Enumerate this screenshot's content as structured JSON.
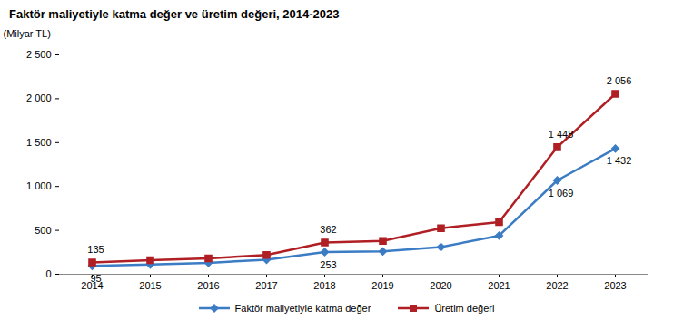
{
  "chart_data": {
    "type": "line",
    "title": "Faktör maliyetiyle katma değer ve üretim değeri, 2014-2023",
    "y_label": "(Milyar TL)",
    "x": [
      2014,
      2015,
      2016,
      2017,
      2018,
      2019,
      2020,
      2021,
      2022,
      2023
    ],
    "series": [
      {
        "name": "Faktör maliyetiyle katma değer",
        "color": "#3b7cc4",
        "marker": "diamond",
        "values": [
          95,
          110,
          130,
          165,
          253,
          260,
          310,
          440,
          1069,
          1432
        ],
        "value_labels": [
          "95",
          null,
          null,
          null,
          "253",
          null,
          null,
          null,
          "1 069",
          "1 432"
        ]
      },
      {
        "name": "Üretim değeri",
        "color": "#b01f24",
        "marker": "square",
        "values": [
          135,
          160,
          180,
          220,
          362,
          380,
          525,
          595,
          1448,
          2056
        ],
        "value_labels": [
          "135",
          null,
          null,
          null,
          "362",
          null,
          null,
          null,
          "1 448",
          "2 056"
        ]
      }
    ],
    "ylim": [
      0,
      2500
    ],
    "yticks": [
      0,
      500,
      {
        "value": 1000,
        "label": "1 000"
      },
      {
        "value": 1500,
        "label": "1 500"
      },
      {
        "value": 2000,
        "label": "2 000"
      },
      {
        "value": 2500,
        "label": "2 500"
      }
    ],
    "grid": false,
    "legend": "bottom",
    "data_labels": true
  }
}
